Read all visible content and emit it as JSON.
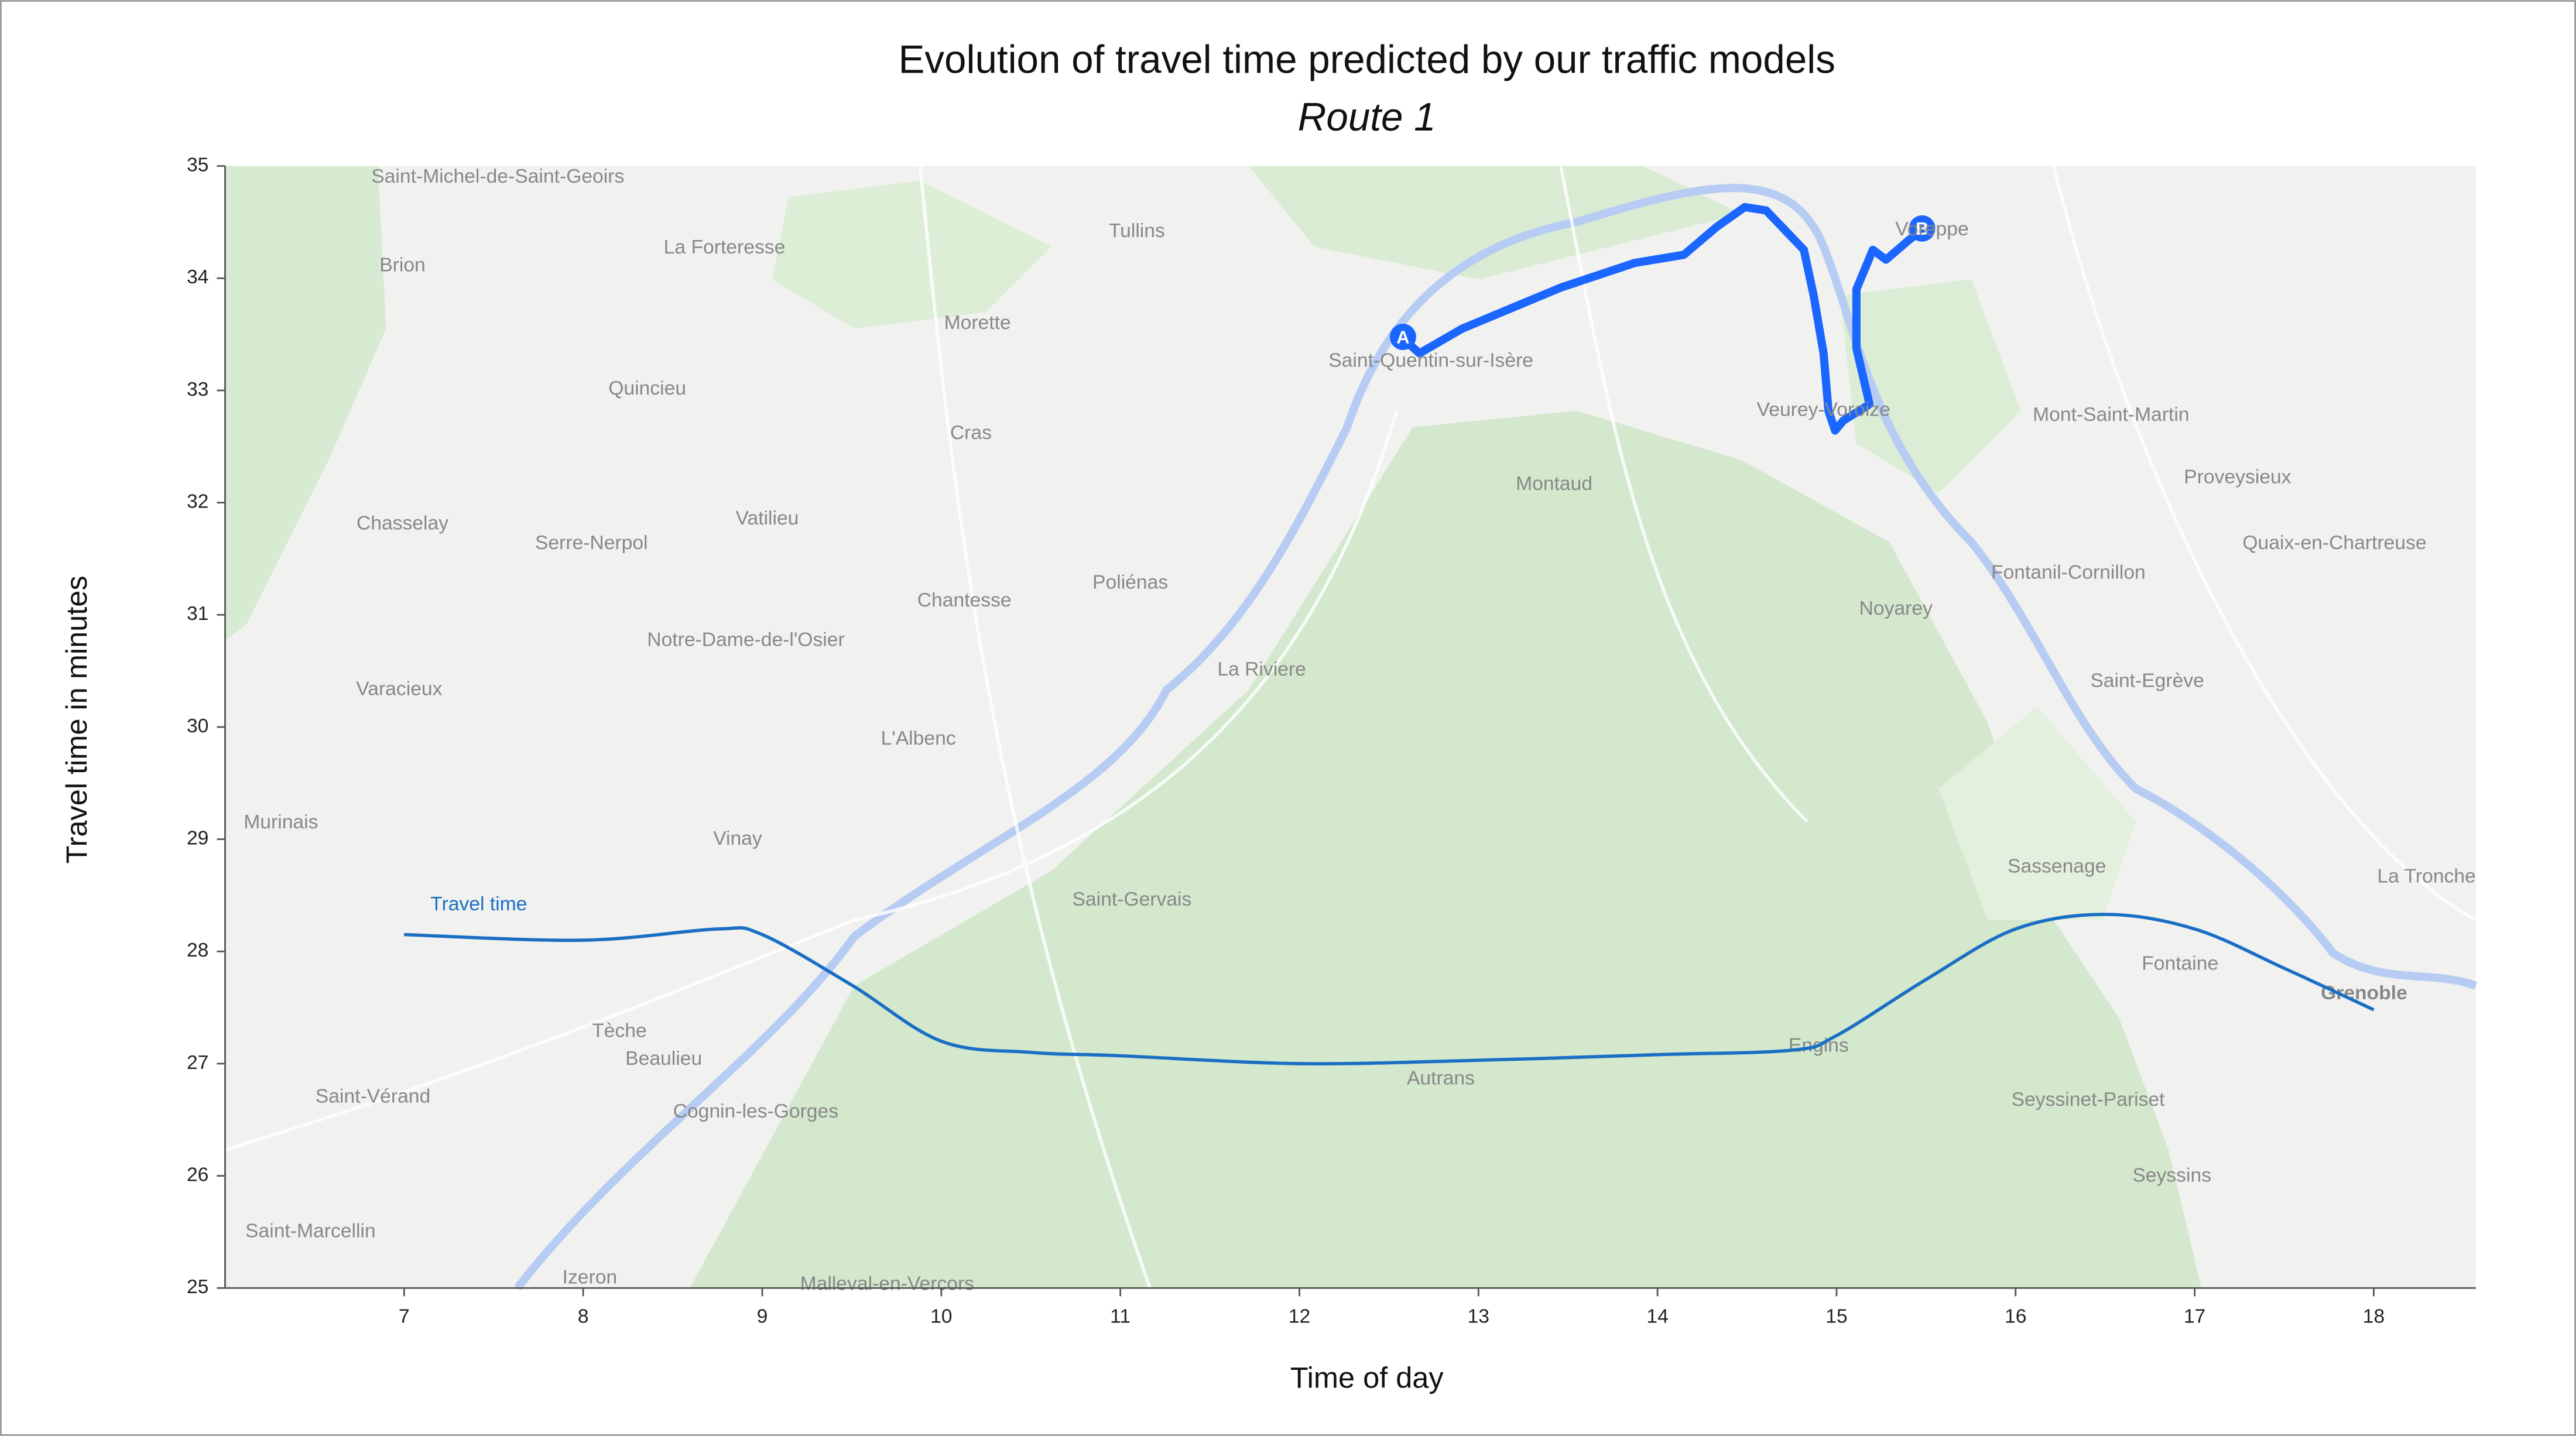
{
  "chart_data": {
    "type": "line",
    "title": "Evolution of travel time predicted by our traffic models",
    "subtitle": "Route 1",
    "x_label": "Time of day",
    "y_label": "Travel time in minutes",
    "annotation": "Travel time",
    "x": [
      7,
      8,
      8.75,
      9,
      9.5,
      10,
      10.5,
      11,
      12,
      13,
      14,
      14.75,
      15,
      15.5,
      16,
      16.5,
      17,
      17.5,
      18
    ],
    "series": [
      {
        "name": "Travel time",
        "color": "#1a6fc4",
        "values": [
          28.15,
          28.1,
          28.2,
          28.15,
          27.7,
          27.2,
          27.1,
          27.07,
          27.0,
          27.03,
          27.08,
          27.12,
          27.25,
          27.75,
          28.2,
          28.33,
          28.2,
          27.85,
          27.48
        ]
      }
    ],
    "xlim": [
      6,
      18.57
    ],
    "ylim": [
      25,
      35
    ],
    "xticks": [
      7,
      8,
      9,
      10,
      11,
      12,
      13,
      14,
      15,
      16,
      17,
      18
    ],
    "yticks": [
      25,
      26,
      27,
      28,
      29,
      30,
      31,
      32,
      33,
      34,
      35
    ]
  },
  "map": {
    "route_start": "A",
    "route_end": "B",
    "route_color": "#1a66ff",
    "labels": [
      "Saint-Michel-de-Saint-Geoirs",
      "Brion",
      "La Forteresse",
      "Tullins",
      "Morette",
      "Quincieu",
      "Cras",
      "Saint-Quentin-sur-Isère",
      "Veurey-Voroize",
      "Voreppe",
      "Mont-Saint-Martin",
      "Proveysieux",
      "Quaix-en-Chartreuse",
      "Montaud",
      "Chasselay",
      "Serre-Nerpol",
      "Vatilieu",
      "Poliénas",
      "Chantesse",
      "Fontanil-Cornillon",
      "Noyarey",
      "Notre-Dame-de-l'Osier",
      "La Riviere",
      "Saint-Egrève",
      "Varacieux",
      "L'Albenc",
      "Murinais",
      "Vinay",
      "Sassenage",
      "La Tronche",
      "Saint-Gervais",
      "Fontaine",
      "Grenoble",
      "Tèche",
      "Beaulieu",
      "Engins",
      "Autrans",
      "Saint-Vérand",
      "Seyssinet-Pariset",
      "Cognin-les-Gorges",
      "Seyssins",
      "Saint-Marcellin",
      "Izeron",
      "Malleval-en-Vercors"
    ]
  }
}
